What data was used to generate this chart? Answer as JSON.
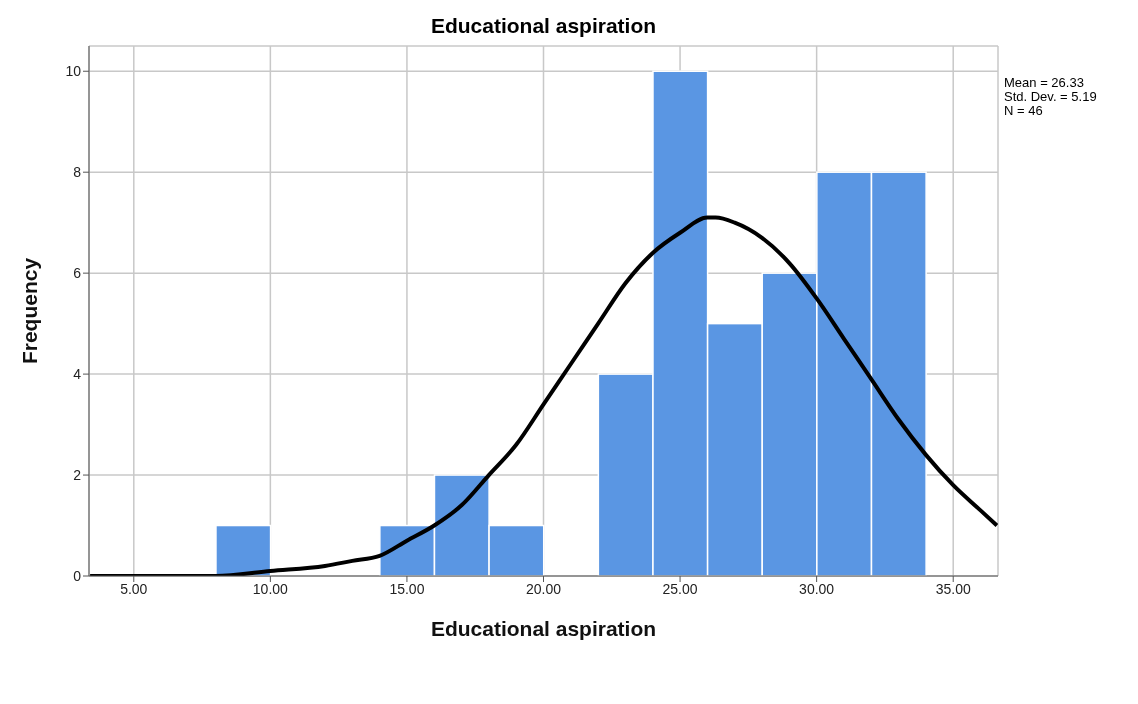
{
  "chart_data": {
    "type": "histogram",
    "title": "Educational aspiration",
    "xlabel": "Educational aspiration",
    "ylabel": "Frequency",
    "bins": [
      8,
      10,
      12,
      14,
      16,
      18,
      20,
      22,
      24,
      26,
      28,
      30,
      32,
      34
    ],
    "values": [
      1,
      0,
      0,
      1,
      2,
      1,
      0,
      4,
      10,
      5,
      6,
      8,
      8
    ],
    "color": "#5a96e3",
    "series": [
      {
        "type": "line",
        "color": "#000000",
        "x": [
          3.4,
          6,
          8,
          10,
          12,
          13,
          14,
          15,
          16,
          17,
          18,
          19,
          20,
          21,
          22,
          23,
          24,
          25,
          26,
          26.3,
          27,
          28,
          29,
          30,
          31,
          32,
          33,
          34,
          35,
          36,
          36.6
        ],
        "values": [
          0,
          0,
          0,
          0.1,
          0.2,
          0.3,
          0.4,
          0.7,
          1,
          1.4,
          2,
          2.6,
          3.4,
          4.2,
          5,
          5.8,
          6.4,
          6.8,
          7.1,
          7.1,
          7,
          6.7,
          6.2,
          5.5,
          4.7,
          3.9,
          3.1,
          2.4,
          1.8,
          1.3,
          1
        ]
      }
    ],
    "xlim": [
      3.36,
      36.64
    ],
    "xticks": [
      {
        "value": 5,
        "label": "5.00"
      },
      {
        "value": 10,
        "label": "10.00"
      },
      {
        "value": 15,
        "label": "15.00"
      },
      {
        "value": 20,
        "label": "20.00"
      },
      {
        "value": 25,
        "label": "25.00"
      },
      {
        "value": 30,
        "label": "30.00"
      },
      {
        "value": 35,
        "label": "35.00"
      }
    ],
    "ylim": [
      0,
      10.5
    ],
    "yticks": [
      0,
      2,
      4,
      6,
      8,
      10
    ],
    "grid": true,
    "annotations": [
      "Mean = 26.33",
      "Std. Dev. = 5.19",
      "N = 46"
    ]
  }
}
